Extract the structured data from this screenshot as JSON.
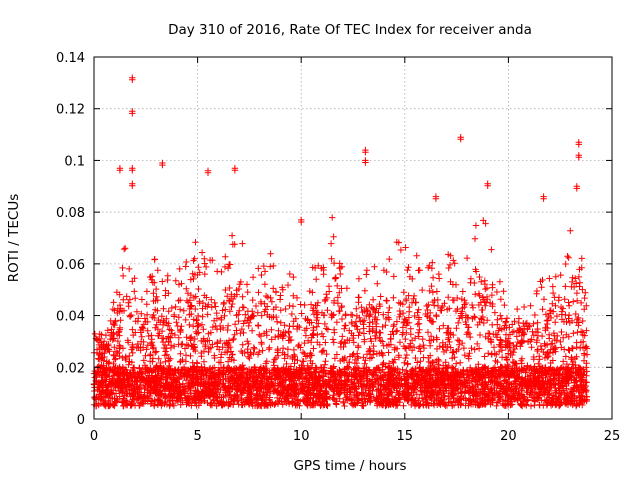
{
  "chart_data": {
    "type": "scatter",
    "title": "Day 310 of 2016, Rate Of TEC Index for receiver anda",
    "xlabel": "GPS time / hours",
    "ylabel": "ROTI / TECUs",
    "xlim": [
      0,
      25
    ],
    "ylim": [
      0,
      0.14
    ],
    "xticks": [
      0,
      5,
      10,
      15,
      20,
      25
    ],
    "xtick_labels": [
      "0",
      "5",
      "10",
      "15",
      "20",
      "25"
    ],
    "yticks": [
      0,
      0.02,
      0.04,
      0.06,
      0.08,
      0.1,
      0.12,
      0.14
    ],
    "ytick_labels": [
      "0",
      "0.02",
      "0.04",
      "0.06",
      "0.08",
      "0.1",
      "0.12",
      "0.14"
    ],
    "grid": true,
    "marker": "plus",
    "color": "#ff0000",
    "x_data_range": [
      0,
      23.8
    ],
    "notable_points": [
      {
        "x": 1.85,
        "y": 0.132
      },
      {
        "x": 1.85,
        "y": 0.119
      },
      {
        "x": 1.25,
        "y": 0.097
      },
      {
        "x": 1.85,
        "y": 0.097
      },
      {
        "x": 1.85,
        "y": 0.091
      },
      {
        "x": 3.3,
        "y": 0.099
      },
      {
        "x": 5.5,
        "y": 0.096
      },
      {
        "x": 6.8,
        "y": 0.097
      },
      {
        "x": 10.0,
        "y": 0.077
      },
      {
        "x": 13.1,
        "y": 0.104
      },
      {
        "x": 13.1,
        "y": 0.1
      },
      {
        "x": 16.5,
        "y": 0.086
      },
      {
        "x": 17.7,
        "y": 0.109
      },
      {
        "x": 19.0,
        "y": 0.091
      },
      {
        "x": 21.7,
        "y": 0.086
      },
      {
        "x": 23.4,
        "y": 0.107
      },
      {
        "x": 23.4,
        "y": 0.102
      },
      {
        "x": 23.3,
        "y": 0.09
      }
    ],
    "envelope": [
      {
        "x": 0,
        "y": 0.042
      },
      {
        "x": 0.5,
        "y": 0.03
      },
      {
        "x": 1.0,
        "y": 0.05
      },
      {
        "x": 1.5,
        "y": 0.07
      },
      {
        "x": 2.0,
        "y": 0.055
      },
      {
        "x": 2.5,
        "y": 0.05
      },
      {
        "x": 3.0,
        "y": 0.065
      },
      {
        "x": 3.5,
        "y": 0.055
      },
      {
        "x": 4.0,
        "y": 0.06
      },
      {
        "x": 4.5,
        "y": 0.068
      },
      {
        "x": 5.0,
        "y": 0.07
      },
      {
        "x": 5.5,
        "y": 0.065
      },
      {
        "x": 6.0,
        "y": 0.058
      },
      {
        "x": 6.5,
        "y": 0.07
      },
      {
        "x": 7.0,
        "y": 0.08
      },
      {
        "x": 7.5,
        "y": 0.055
      },
      {
        "x": 8.0,
        "y": 0.06
      },
      {
        "x": 8.5,
        "y": 0.068
      },
      {
        "x": 9.0,
        "y": 0.05
      },
      {
        "x": 9.5,
        "y": 0.062
      },
      {
        "x": 10.0,
        "y": 0.045
      },
      {
        "x": 10.5,
        "y": 0.058
      },
      {
        "x": 11.0,
        "y": 0.065
      },
      {
        "x": 11.5,
        "y": 0.078
      },
      {
        "x": 12.0,
        "y": 0.06
      },
      {
        "x": 12.5,
        "y": 0.055
      },
      {
        "x": 13.0,
        "y": 0.058
      },
      {
        "x": 13.5,
        "y": 0.06
      },
      {
        "x": 14.0,
        "y": 0.065
      },
      {
        "x": 14.5,
        "y": 0.07
      },
      {
        "x": 15.0,
        "y": 0.068
      },
      {
        "x": 15.5,
        "y": 0.065
      },
      {
        "x": 16.0,
        "y": 0.06
      },
      {
        "x": 16.5,
        "y": 0.062
      },
      {
        "x": 17.0,
        "y": 0.065
      },
      {
        "x": 17.5,
        "y": 0.062
      },
      {
        "x": 18.0,
        "y": 0.063
      },
      {
        "x": 18.5,
        "y": 0.08
      },
      {
        "x": 19.0,
        "y": 0.075
      },
      {
        "x": 19.5,
        "y": 0.055
      },
      {
        "x": 20.0,
        "y": 0.045
      },
      {
        "x": 20.5,
        "y": 0.05
      },
      {
        "x": 21.0,
        "y": 0.045
      },
      {
        "x": 21.5,
        "y": 0.06
      },
      {
        "x": 22.0,
        "y": 0.055
      },
      {
        "x": 22.5,
        "y": 0.058
      },
      {
        "x": 23.0,
        "y": 0.075
      },
      {
        "x": 23.5,
        "y": 0.08
      },
      {
        "x": 23.8,
        "y": 0.04
      }
    ]
  }
}
